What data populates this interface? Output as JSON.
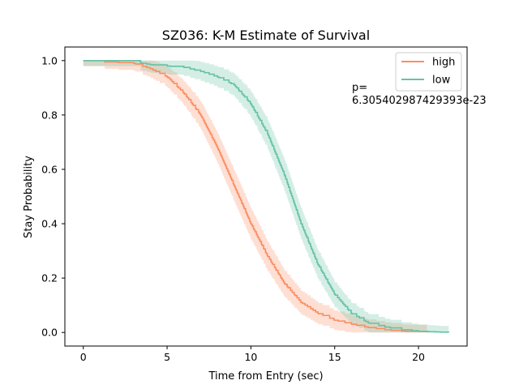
{
  "chart_data": {
    "type": "line",
    "title": "SZ036: K-M Estimate of Survival",
    "xlabel": "Time from Entry (sec)",
    "ylabel": "Stay Probability",
    "xlim": [
      -1.1,
      22.9
    ],
    "ylim": [
      -0.05,
      1.05
    ],
    "xticks": [
      0,
      5,
      10,
      15,
      20
    ],
    "yticks": [
      0.0,
      0.2,
      0.4,
      0.6,
      0.8,
      1.0
    ],
    "xtick_labels": [
      "0",
      "5",
      "10",
      "15",
      "20"
    ],
    "ytick_labels": [
      "0.0",
      "0.2",
      "0.4",
      "0.6",
      "0.8",
      "1.0"
    ],
    "legend_position": "top-right",
    "grid": false,
    "annotation": [
      "p=",
      "6.305402987429393e-23"
    ],
    "series": [
      {
        "name": "high",
        "color": "#fc8d62",
        "step": true,
        "confidence_band": true,
        "points": [
          [
            0,
            1.0
          ],
          [
            1.2,
            1.0
          ],
          [
            1.3,
            0.995
          ],
          [
            3.0,
            0.99
          ],
          [
            4.0,
            0.97
          ],
          [
            5.0,
            0.94
          ],
          [
            6.0,
            0.88
          ],
          [
            7.0,
            0.8
          ],
          [
            8.0,
            0.68
          ],
          [
            9.0,
            0.54
          ],
          [
            10.0,
            0.4
          ],
          [
            11.0,
            0.28
          ],
          [
            12.0,
            0.18
          ],
          [
            13.0,
            0.11
          ],
          [
            14.0,
            0.07
          ],
          [
            15.0,
            0.045
          ],
          [
            16.0,
            0.03
          ],
          [
            17.0,
            0.018
          ],
          [
            18.0,
            0.01
          ],
          [
            19.0,
            0.005
          ],
          [
            20.5,
            0.0
          ]
        ]
      },
      {
        "name": "low",
        "color": "#66c2a5",
        "step": true,
        "confidence_band": true,
        "points": [
          [
            0,
            1.0
          ],
          [
            3.0,
            1.0
          ],
          [
            3.5,
            0.99
          ],
          [
            4.0,
            0.985
          ],
          [
            5.0,
            0.98
          ],
          [
            6.0,
            0.975
          ],
          [
            7.0,
            0.96
          ],
          [
            8.0,
            0.94
          ],
          [
            9.0,
            0.91
          ],
          [
            10.0,
            0.84
          ],
          [
            11.0,
            0.73
          ],
          [
            12.0,
            0.58
          ],
          [
            13.0,
            0.4
          ],
          [
            14.0,
            0.25
          ],
          [
            15.0,
            0.14
          ],
          [
            16.0,
            0.07
          ],
          [
            17.0,
            0.035
          ],
          [
            18.0,
            0.02
          ],
          [
            19.0,
            0.01
          ],
          [
            20.0,
            0.004
          ],
          [
            21.0,
            0.002
          ],
          [
            21.8,
            0.0
          ]
        ]
      }
    ]
  }
}
